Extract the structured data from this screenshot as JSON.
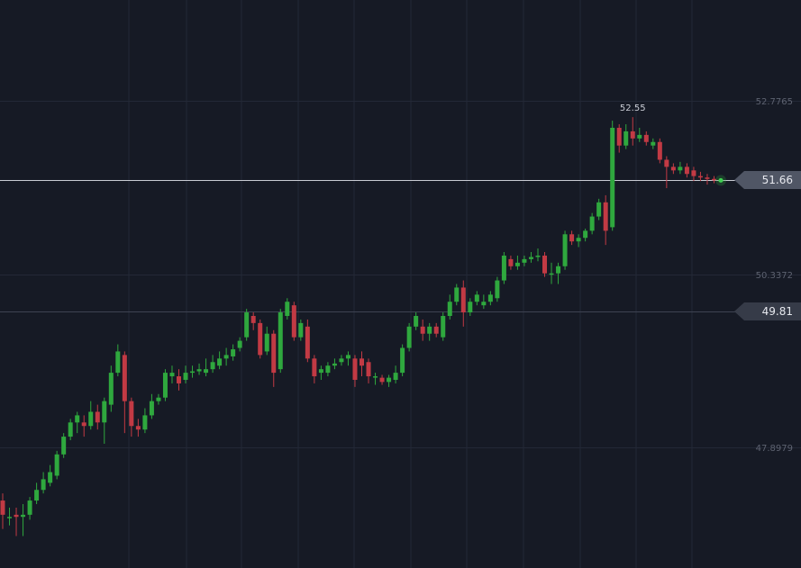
{
  "chart_data": {
    "type": "candlestick",
    "y_axis": {
      "range": [
        46.2,
        54.2
      ],
      "ticks": [
        52.7765,
        50.3372,
        47.8979
      ],
      "labels": [
        "52.7765",
        "50.3372",
        "47.8979"
      ],
      "position": "right"
    },
    "horizontal_lines": [
      {
        "value": 51.66,
        "label": "51.66",
        "color": "#c8cbd3",
        "label_style": "current"
      },
      {
        "value": 49.81,
        "label": "49.81",
        "color": "#3e4352",
        "label_style": "level"
      }
    ],
    "peak_annotation": {
      "value": 52.55,
      "label": "52.55"
    },
    "colors": {
      "up": "#2fa83e",
      "down": "#c23a44",
      "background": "#161a25",
      "grid": "#232836"
    },
    "candles": [
      [
        47.15,
        46.95,
        47.25,
        46.75
      ],
      [
        46.92,
        46.92,
        47.05,
        46.8
      ],
      [
        46.95,
        46.92,
        47.05,
        46.65
      ],
      [
        46.92,
        46.95,
        47.1,
        46.65
      ],
      [
        46.95,
        47.15,
        47.2,
        46.88
      ],
      [
        47.15,
        47.3,
        47.4,
        47.1
      ],
      [
        47.3,
        47.45,
        47.55,
        47.25
      ],
      [
        47.4,
        47.55,
        47.65,
        47.35
      ],
      [
        47.5,
        47.8,
        47.85,
        47.45
      ],
      [
        47.8,
        48.05,
        48.1,
        47.75
      ],
      [
        48.05,
        48.25,
        48.3,
        48.0
      ],
      [
        48.25,
        48.35,
        48.4,
        48.1
      ],
      [
        48.25,
        48.2,
        48.35,
        48.05
      ],
      [
        48.2,
        48.4,
        48.55,
        48.15
      ],
      [
        48.4,
        48.25,
        48.5,
        48.15
      ],
      [
        48.25,
        48.55,
        48.6,
        47.95
      ],
      [
        48.5,
        48.95,
        49.05,
        48.4
      ],
      [
        48.95,
        49.25,
        49.35,
        48.9
      ],
      [
        49.2,
        48.55,
        49.25,
        48.1
      ],
      [
        48.55,
        48.2,
        48.6,
        48.05
      ],
      [
        48.2,
        48.15,
        48.3,
        48.05
      ],
      [
        48.15,
        48.35,
        48.45,
        48.1
      ],
      [
        48.35,
        48.55,
        48.65,
        48.3
      ],
      [
        48.55,
        48.6,
        48.65,
        48.5
      ],
      [
        48.6,
        48.95,
        49.0,
        48.55
      ],
      [
        48.9,
        48.95,
        49.05,
        48.8
      ],
      [
        48.9,
        48.8,
        49.0,
        48.7
      ],
      [
        48.85,
        48.95,
        49.05,
        48.8
      ],
      [
        48.95,
        48.97,
        49.05,
        48.88
      ],
      [
        48.97,
        49.0,
        49.08,
        48.92
      ],
      [
        48.95,
        49.0,
        49.15,
        48.9
      ],
      [
        49.0,
        49.1,
        49.2,
        48.95
      ],
      [
        49.05,
        49.15,
        49.25,
        49.0
      ],
      [
        49.15,
        49.2,
        49.3,
        49.05
      ],
      [
        49.18,
        49.28,
        49.35,
        49.12
      ],
      [
        49.3,
        49.4,
        49.45,
        49.25
      ],
      [
        49.45,
        49.8,
        49.85,
        49.4
      ],
      [
        49.75,
        49.65,
        49.8,
        49.55
      ],
      [
        49.65,
        49.2,
        49.7,
        49.15
      ],
      [
        49.25,
        49.5,
        49.6,
        49.2
      ],
      [
        49.5,
        48.95,
        49.55,
        48.75
      ],
      [
        49.0,
        49.8,
        49.85,
        48.95
      ],
      [
        49.75,
        49.95,
        50.0,
        49.7
      ],
      [
        49.9,
        49.45,
        49.95,
        49.4
      ],
      [
        49.45,
        49.65,
        49.7,
        49.4
      ],
      [
        49.6,
        49.15,
        49.7,
        49.1
      ],
      [
        49.15,
        48.9,
        49.2,
        48.8
      ],
      [
        48.95,
        49.0,
        49.05,
        48.85
      ],
      [
        48.95,
        49.05,
        49.1,
        48.9
      ],
      [
        49.05,
        49.08,
        49.15,
        49.0
      ],
      [
        49.1,
        49.15,
        49.2,
        49.05
      ],
      [
        49.15,
        49.2,
        49.25,
        49.05
      ],
      [
        49.15,
        48.85,
        49.2,
        48.75
      ],
      [
        49.15,
        49.05,
        49.25,
        48.9
      ],
      [
        49.1,
        48.9,
        49.15,
        48.8
      ],
      [
        48.9,
        48.9,
        48.95,
        48.78
      ],
      [
        48.88,
        48.82,
        48.92,
        48.78
      ],
      [
        48.82,
        48.88,
        48.92,
        48.75
      ],
      [
        48.85,
        48.95,
        49.05,
        48.8
      ],
      [
        48.95,
        49.3,
        49.35,
        48.9
      ],
      [
        49.3,
        49.6,
        49.65,
        49.25
      ],
      [
        49.6,
        49.75,
        49.8,
        49.55
      ],
      [
        49.6,
        49.5,
        49.7,
        49.4
      ],
      [
        49.5,
        49.6,
        49.65,
        49.4
      ],
      [
        49.6,
        49.5,
        49.65,
        49.45
      ],
      [
        49.45,
        49.75,
        49.8,
        49.4
      ],
      [
        49.75,
        49.95,
        50.05,
        49.7
      ],
      [
        49.95,
        50.15,
        50.2,
        49.9
      ],
      [
        50.15,
        49.8,
        50.25,
        49.6
      ],
      [
        49.8,
        49.95,
        50.0,
        49.75
      ],
      [
        49.95,
        50.05,
        50.1,
        49.9
      ],
      [
        49.9,
        49.95,
        50.05,
        49.85
      ],
      [
        49.95,
        50.05,
        50.1,
        49.9
      ],
      [
        50.0,
        50.25,
        50.3,
        49.95
      ],
      [
        50.25,
        50.6,
        50.65,
        50.2
      ],
      [
        50.55,
        50.45,
        50.6,
        50.4
      ],
      [
        50.45,
        50.5,
        50.6,
        50.4
      ],
      [
        50.5,
        50.55,
        50.6,
        50.45
      ],
      [
        50.55,
        50.58,
        50.65,
        50.5
      ],
      [
        50.58,
        50.6,
        50.7,
        50.52
      ],
      [
        50.6,
        50.35,
        50.65,
        50.3
      ],
      [
        50.35,
        50.35,
        50.5,
        50.2
      ],
      [
        50.35,
        50.45,
        50.5,
        50.2
      ],
      [
        50.45,
        50.9,
        50.95,
        50.4
      ],
      [
        50.9,
        50.8,
        50.95,
        50.75
      ],
      [
        50.8,
        50.85,
        50.9,
        50.72
      ],
      [
        50.85,
        50.95,
        50.98,
        50.8
      ],
      [
        50.95,
        51.15,
        51.2,
        50.9
      ],
      [
        51.15,
        51.35,
        51.4,
        51.1
      ],
      [
        51.35,
        50.95,
        51.45,
        50.75
      ],
      [
        51.0,
        52.4,
        52.5,
        50.95
      ],
      [
        52.4,
        52.15,
        52.45,
        52.05
      ],
      [
        52.15,
        52.35,
        52.45,
        52.1
      ],
      [
        52.35,
        52.25,
        52.55,
        52.15
      ],
      [
        52.25,
        52.3,
        52.4,
        52.2
      ],
      [
        52.3,
        52.2,
        52.35,
        52.15
      ],
      [
        52.15,
        52.2,
        52.25,
        52.1
      ],
      [
        52.2,
        51.95,
        52.25,
        51.9
      ],
      [
        51.95,
        51.85,
        52.0,
        51.55
      ],
      [
        51.85,
        51.8,
        51.9,
        51.75
      ],
      [
        51.8,
        51.85,
        51.92,
        51.75
      ],
      [
        51.85,
        51.75,
        51.9,
        51.7
      ],
      [
        51.8,
        51.72,
        51.85,
        51.65
      ],
      [
        51.72,
        51.7,
        51.78,
        51.65
      ],
      [
        51.7,
        51.68,
        51.75,
        51.6
      ],
      [
        51.68,
        51.66,
        51.72,
        51.62
      ],
      [
        51.66,
        51.66,
        51.69,
        51.64
      ]
    ]
  }
}
